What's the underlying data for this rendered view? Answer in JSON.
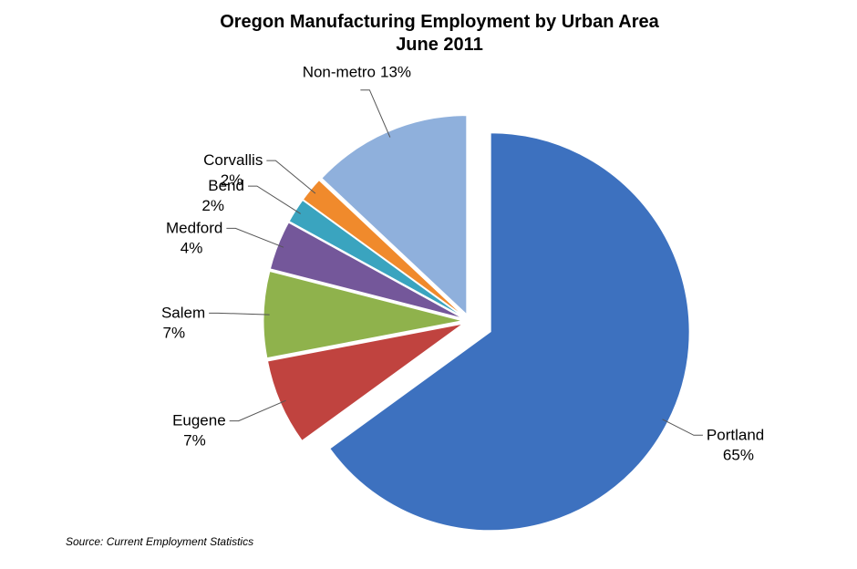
{
  "chart_data": {
    "type": "pie",
    "title": "Oregon Manufacturing Employment by Urban Area",
    "subtitle": "June 2011",
    "source": "Source: Current Employment Statistics",
    "categories": [
      "Portland",
      "Eugene",
      "Salem",
      "Medford",
      "Bend",
      "Corvallis",
      "Non-metro"
    ],
    "values": [
      65,
      7,
      7,
      4,
      2,
      2,
      13
    ],
    "value_labels": [
      "65%",
      "7%",
      "7%",
      "4%",
      "2%",
      "2%",
      "13%"
    ],
    "colors": [
      "#3d71bf",
      "#c0433f",
      "#8fb24c",
      "#74579a",
      "#3aa4bf",
      "#f08a2c",
      "#8fb0dc"
    ]
  }
}
